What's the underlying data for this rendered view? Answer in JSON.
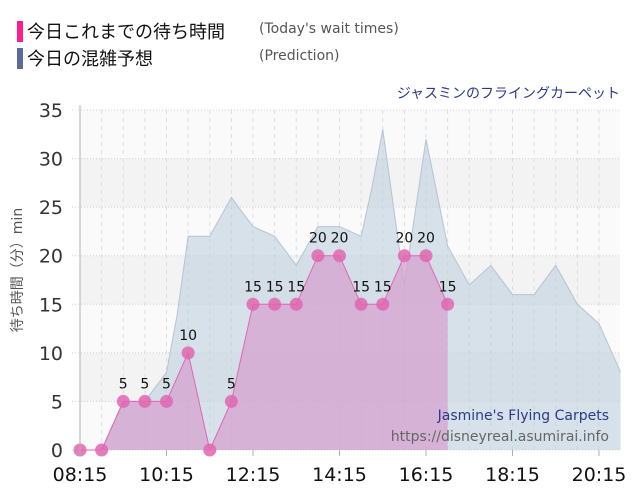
{
  "legend": {
    "items": [
      {
        "label_ja": "今日これまでの待ち時間",
        "label_en": "(Today's wait times)",
        "color": "#ff1c8d"
      },
      {
        "label_ja": "今日の混雑予想",
        "label_en": "(Prediction)",
        "color": "#5b6a9a"
      }
    ]
  },
  "ride_title": "ジャスミンのフライングカーペット",
  "watermark": {
    "name": "Jasmine's Flying Carpets",
    "url": "https://disneyreal.asumirai.info"
  },
  "chart_data": {
    "type": "area",
    "title": "ジャスミンのフライングカーペット",
    "xlabel": "",
    "ylabel": "待ち時間（分）min",
    "ylim": [
      0,
      35
    ],
    "yticks": [
      0,
      5,
      10,
      15,
      20,
      25,
      30,
      35
    ],
    "xticks": [
      "08:15",
      "10:15",
      "12:15",
      "14:15",
      "16:15",
      "18:15",
      "20:15"
    ],
    "grid": true,
    "legend_position": "top-left",
    "series": [
      {
        "name": "今日これまでの待ち時間 (Today's wait times)",
        "color": "#e066b0",
        "times": [
          "08:15",
          "08:45",
          "09:15",
          "09:45",
          "10:15",
          "10:45",
          "11:15",
          "11:45",
          "12:15",
          "12:45",
          "13:15",
          "13:45",
          "14:15",
          "14:45",
          "15:15",
          "15:45",
          "16:15",
          "16:45"
        ],
        "values": [
          0,
          0,
          5,
          5,
          5,
          10,
          0,
          5,
          15,
          15,
          15,
          20,
          20,
          15,
          15,
          20,
          20,
          15
        ]
      },
      {
        "name": "今日の混雑予想 (Prediction)",
        "color": "#aabccc",
        "times": [
          "08:45",
          "09:15",
          "09:45",
          "10:15",
          "10:30",
          "10:45",
          "11:15",
          "11:45",
          "12:15",
          "12:45",
          "13:15",
          "13:45",
          "14:15",
          "14:45",
          "15:00",
          "15:15",
          "15:45",
          "16:15",
          "16:45",
          "17:15",
          "17:45",
          "18:15",
          "18:45",
          "19:15",
          "19:45",
          "20:15",
          "20:45"
        ],
        "values": [
          0,
          5,
          5,
          8,
          14,
          22,
          22,
          26,
          23,
          22,
          19,
          23,
          23,
          22,
          27,
          33,
          17,
          32,
          21,
          17,
          19,
          16,
          16,
          19,
          15,
          13,
          8
        ]
      }
    ]
  }
}
